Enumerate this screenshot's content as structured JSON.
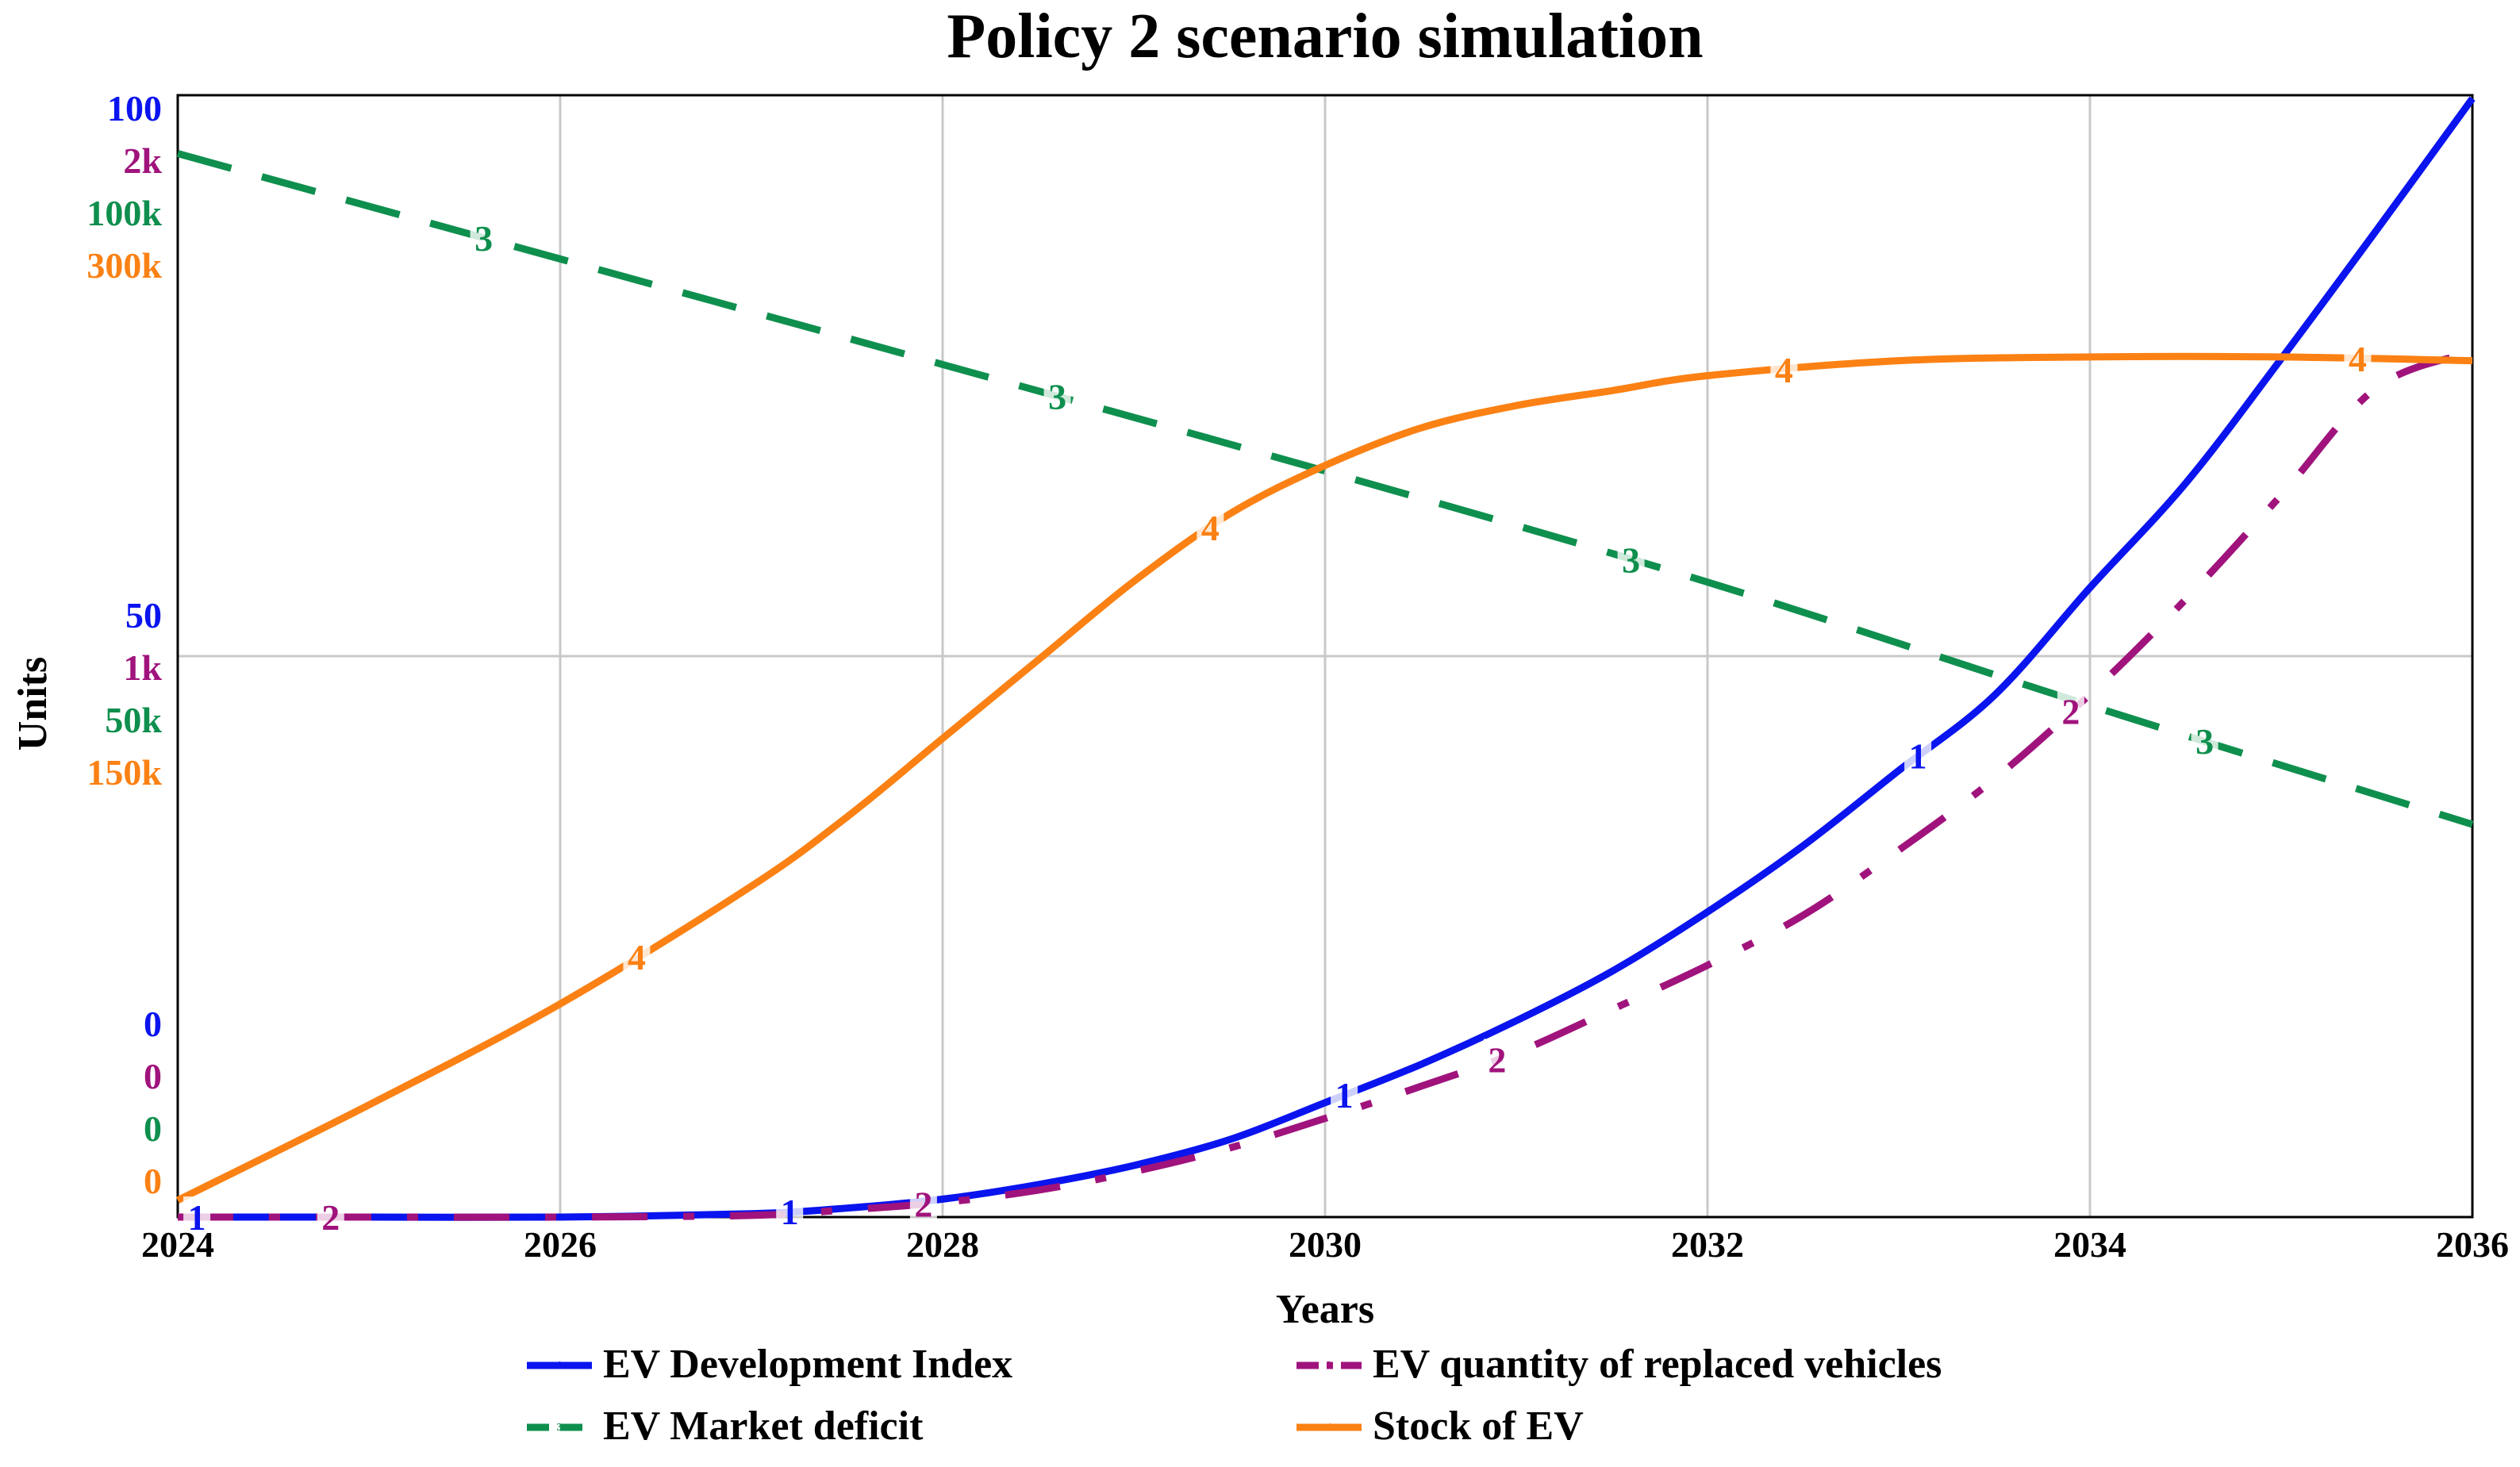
{
  "chart_data": {
    "type": "line",
    "title": "Policy 2 scenario simulation",
    "xlabel": "Years",
    "ylabel": "Units",
    "x_range": [
      2024,
      2036
    ],
    "x_ticks": [
      "2024",
      "2026",
      "2028",
      "2030",
      "2032",
      "2034",
      "2036"
    ],
    "grid": true,
    "legend_position": "bottom",
    "series": [
      {
        "id": "1",
        "name": "EV Development Index",
        "color": "#0a14ee",
        "dash": "solid",
        "axis_ticks": [
          "100",
          "50",
          "0"
        ],
        "y_range": [
          0,
          100
        ],
        "x": [
          2024,
          2025,
          2026,
          2027,
          2027.5,
          2028,
          2028.5,
          2029,
          2029.5,
          2030,
          2030.5,
          2031,
          2031.5,
          2032,
          2032.5,
          2033,
          2033.5,
          2034,
          2034.5,
          2035,
          2035.5,
          2036
        ],
        "values": [
          0,
          0,
          0,
          0.3,
          0.8,
          1.6,
          2.9,
          4.6,
          6.9,
          10.2,
          13.6,
          17.5,
          21.9,
          27.2,
          33.1,
          39.8,
          46.5,
          56.1,
          65.4,
          76.5,
          88.0,
          99.7
        ],
        "markers_x": [
          2024.1,
          2027.2,
          2030.1,
          2033.1
        ]
      },
      {
        "id": "2",
        "name": "EV quantity of replaced vehicles",
        "color": "#a0137c",
        "dash": "dashdot",
        "axis_ticks": [
          "2k",
          "1k",
          "0"
        ],
        "y_range": [
          0,
          2000
        ],
        "x": [
          2024,
          2025,
          2026,
          2027,
          2027.5,
          2028,
          2028.5,
          2029,
          2029.5,
          2030,
          2030.5,
          2031,
          2031.5,
          2032,
          2032.5,
          2033,
          2033.5,
          2034,
          2034.5,
          2035,
          2035.5,
          2036
        ],
        "values": [
          0,
          0,
          0,
          3,
          13,
          26,
          48,
          81,
          123,
          176,
          233,
          293,
          370,
          449,
          538,
          654,
          781,
          932,
          1101,
          1287,
          1479,
          1542
        ],
        "markers_x": [
          2024.8,
          2027.9,
          2030.9,
          2033.9
        ]
      },
      {
        "id": "3",
        "name": "EV Market deficit",
        "color": "#0f8f4e",
        "dash": "dashed",
        "axis_ticks": [
          "100k",
          "50k",
          "0"
        ],
        "y_range": [
          0,
          100000
        ],
        "x": [
          2024,
          2026,
          2028,
          2030,
          2032,
          2034,
          2036
        ],
        "values": [
          94800,
          85400,
          76000,
          66500,
          56600,
          45600,
          35000
        ],
        "markers_x": [
          2025.6,
          2028.6,
          2031.6,
          2034.6
        ]
      },
      {
        "id": "4",
        "name": "Stock of EV",
        "color": "#fb8114",
        "dash": "solid",
        "axis_ticks": [
          "300k",
          "150k",
          "0"
        ],
        "y_range": [
          0,
          300000
        ],
        "x": [
          2024,
          2025,
          2026,
          2027,
          2027.5,
          2028,
          2028.5,
          2029,
          2029.5,
          2030,
          2030.5,
          2031,
          2031.5,
          2032,
          2033,
          2034,
          2035,
          2036
        ],
        "values": [
          4500,
          30000,
          57000,
          88500,
          107000,
          128000,
          149000,
          170000,
          188000,
          201000,
          211000,
          217000,
          221000,
          225000,
          229000,
          230000,
          230000,
          229000
        ],
        "markers_x": [
          2026.4,
          2029.4,
          2032.4,
          2035.4
        ]
      }
    ]
  }
}
